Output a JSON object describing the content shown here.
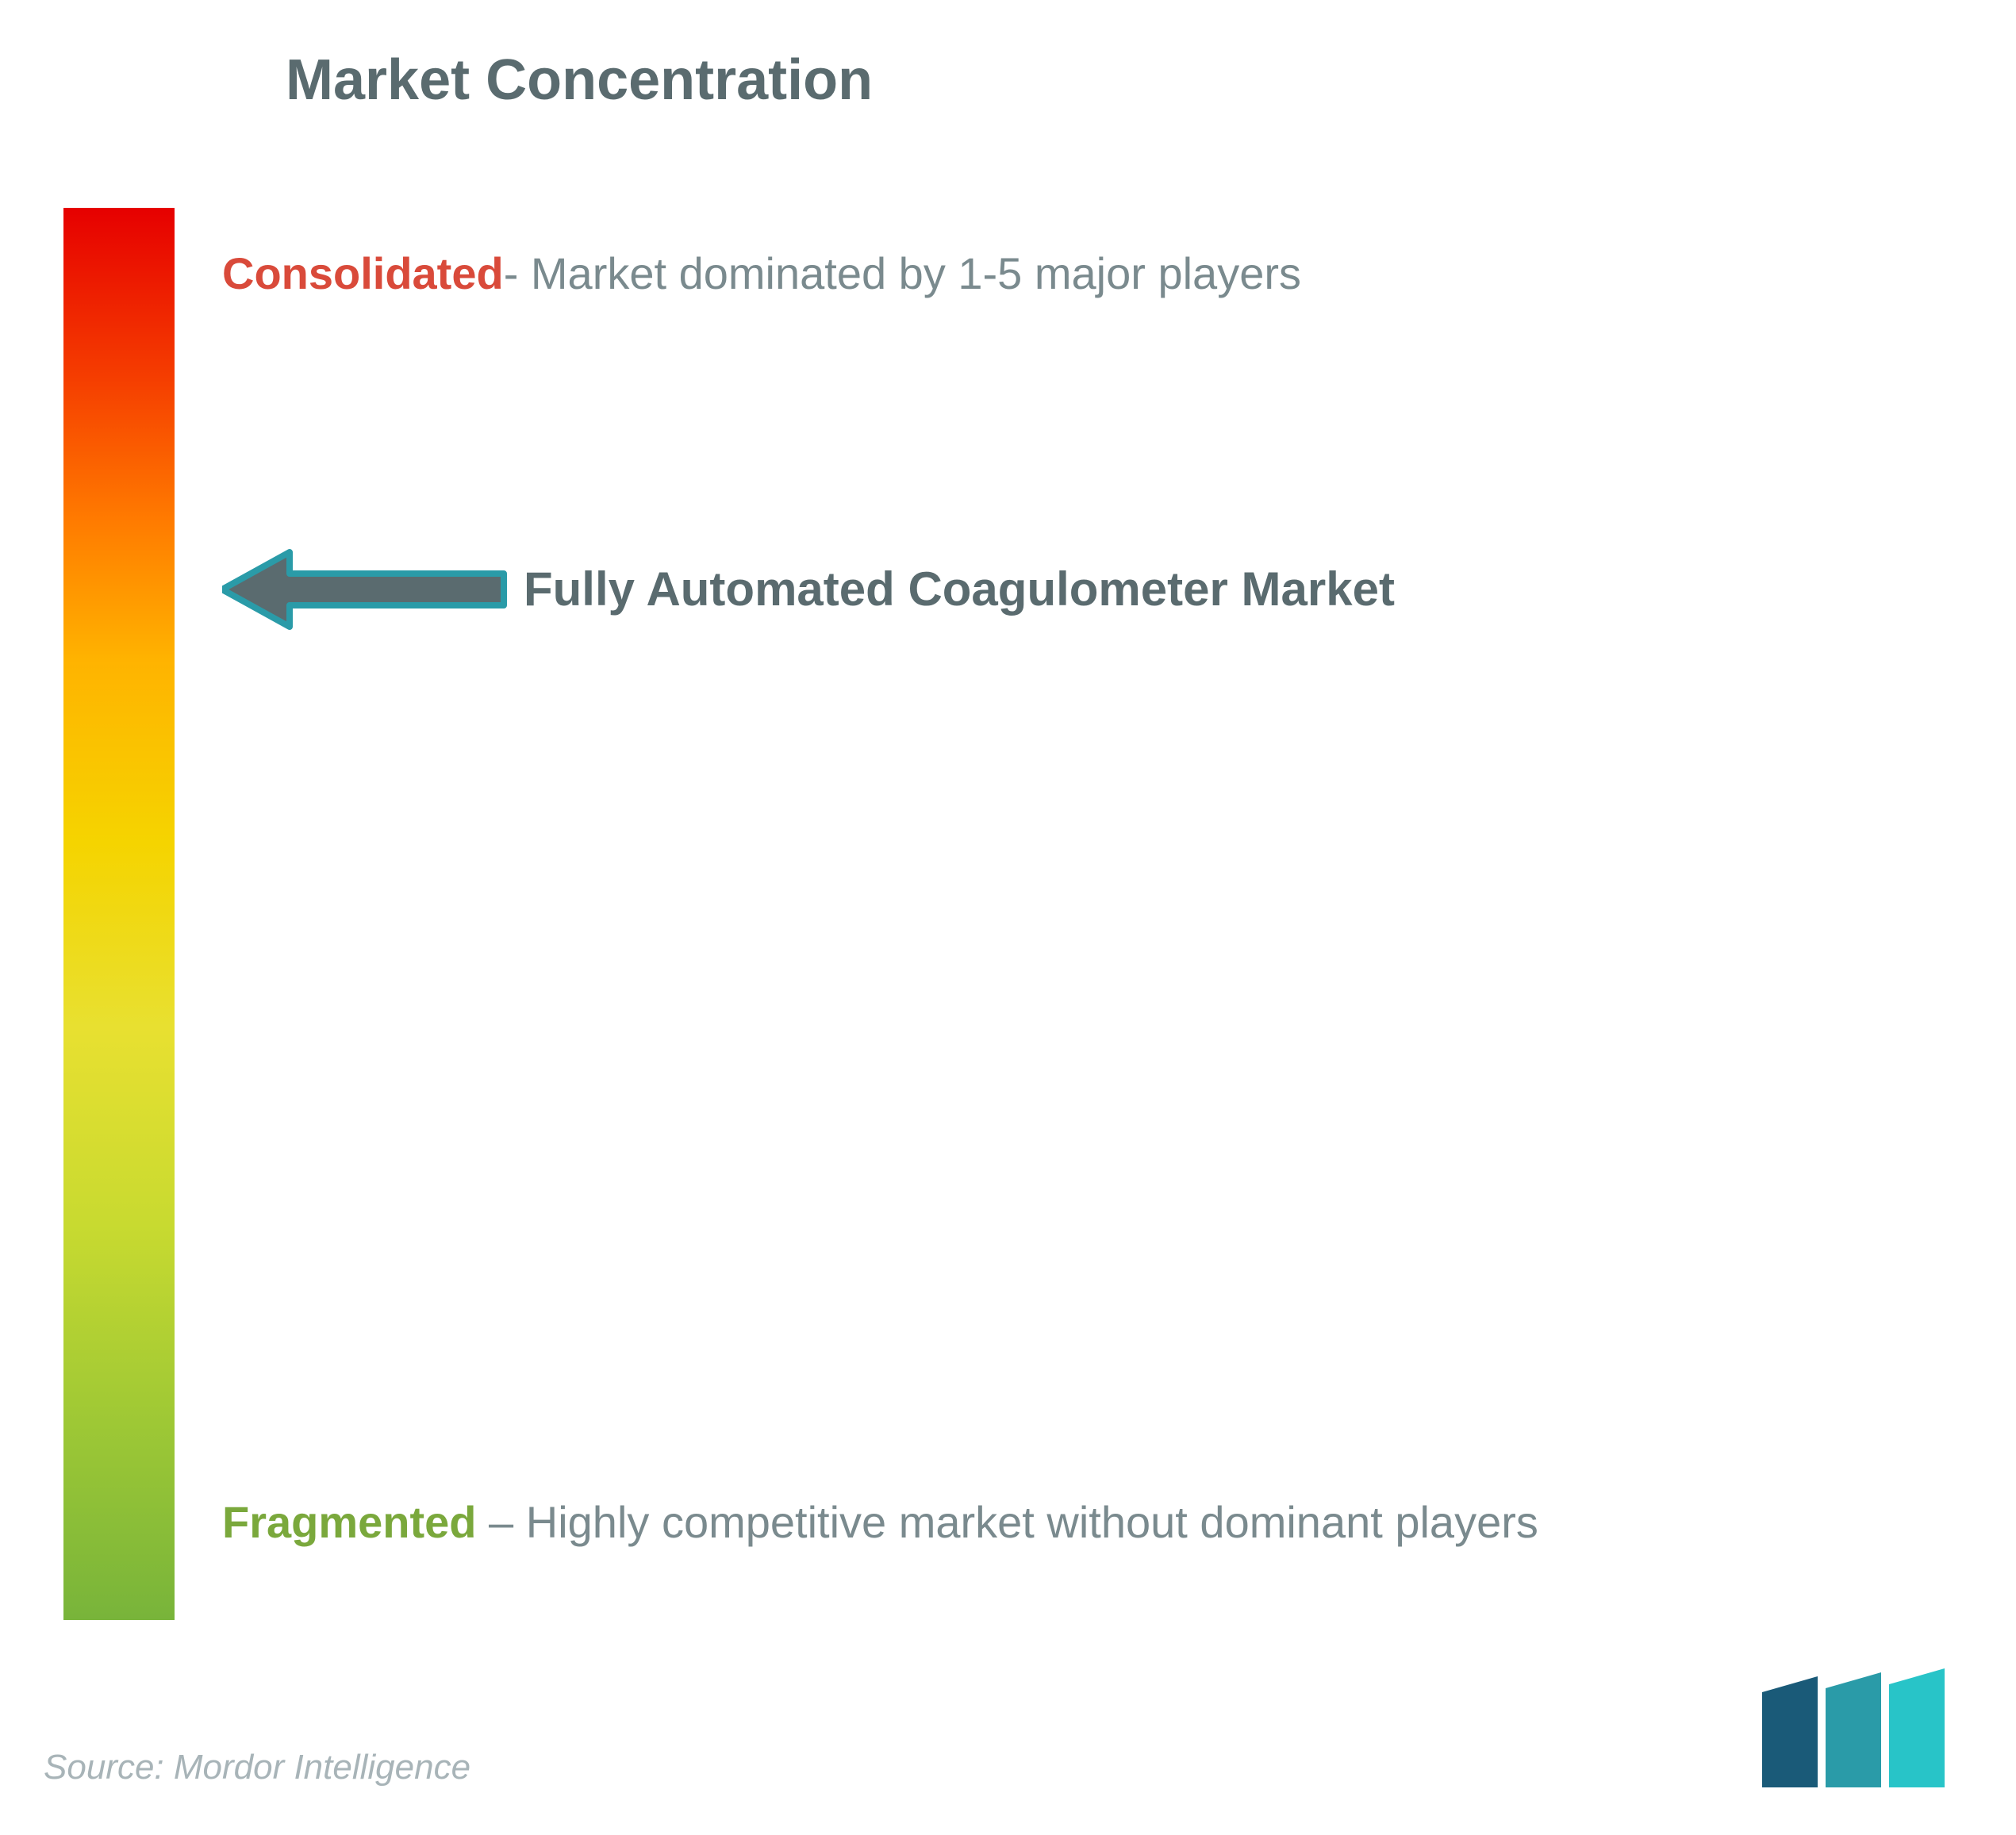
{
  "title": "Market Concentration",
  "title_color": "#5a6b6f",
  "gradient": {
    "colors": [
      "#e60000",
      "#f53d00",
      "#ff7a00",
      "#ffb300",
      "#f5d400",
      "#e8e030",
      "#c8da30",
      "#9ec835",
      "#78b43a"
    ],
    "stops": [
      0,
      12,
      22,
      32,
      45,
      58,
      72,
      86,
      100
    ]
  },
  "consolidated": {
    "key": "Consolidated",
    "key_color": "#d94a3a",
    "separator": "- ",
    "desc": "Market dominated by 1-5 major players",
    "desc_color": "#7a8a8e"
  },
  "fragmented": {
    "key": "Fragmented",
    "key_color": "#7aa83c",
    "separator": " – ",
    "desc": "Highly competitive market without dominant players",
    "desc_color": "#7a8a8e"
  },
  "market": {
    "label": "Fully Automated Coagulometer Market",
    "label_color": "#5a6b6f",
    "position_pct": 27,
    "arrow_fill": "#5a6b6f",
    "arrow_stroke": "#2a9ba8",
    "arrow_stroke_width": 8
  },
  "source": {
    "text": "Source: Mordor Intelligence",
    "color": "#a8b4b8"
  },
  "logo": {
    "bar1_color": "#1a5a78",
    "bar2_color": "#2a9ba8",
    "bar3_color": "#28c4c8"
  }
}
